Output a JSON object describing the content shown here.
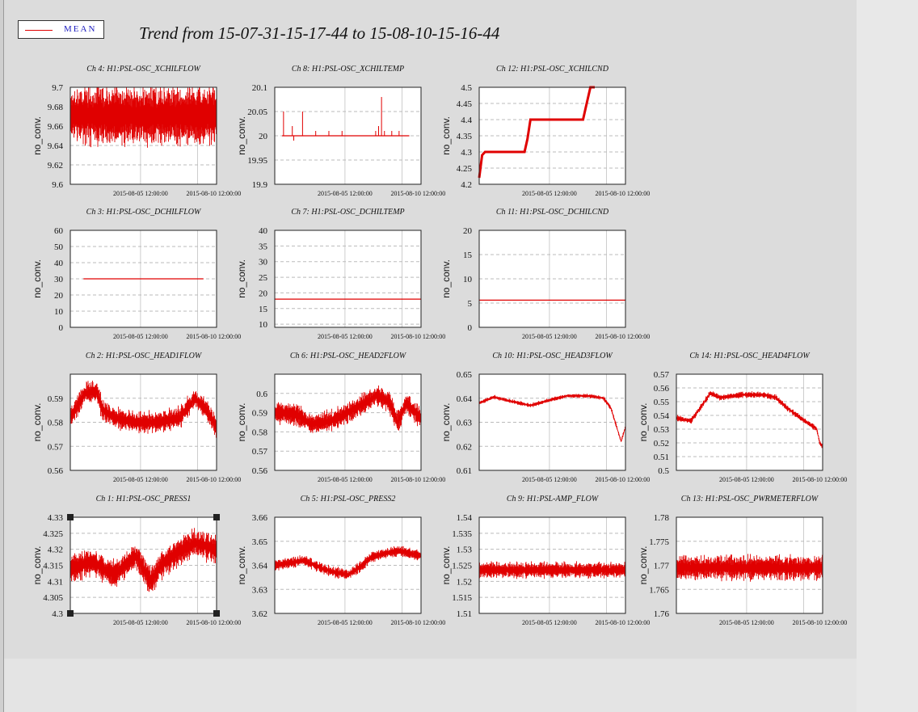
{
  "legend": {
    "label": "MEAN",
    "color": "#e00000"
  },
  "title": "Trend from 15-07-31-15-17-44 to 15-08-10-15-16-44",
  "chart_data": [
    {
      "id": "ch4",
      "type": "line",
      "title": "Ch 4: H1:PSL-OSC_XCHILFLOW",
      "ylabel": "no_conv.",
      "ylim": [
        9.6,
        9.7
      ],
      "yticks": [
        "9.6",
        "9.62",
        "9.64",
        "9.66",
        "9.68",
        "9.7"
      ],
      "xticks": [
        "2015-08-05 12:00:00",
        "2015-08-10 12:00:00"
      ],
      "pattern": "noise",
      "params": {
        "base": 9.671,
        "amp": 0.03,
        "spread": [
          0.015,
          0.035
        ]
      }
    },
    {
      "id": "ch8",
      "type": "line",
      "title": "Ch 8: H1:PSL-OSC_XCHILTEMP",
      "ylabel": "no_conv.",
      "ylim": [
        19.9,
        20.1
      ],
      "yticks": [
        "19.9",
        "19.95",
        "20",
        "20.05",
        "20.1"
      ],
      "xticks": [
        "2015-08-05 12:00:00",
        "2015-08-10 12:00:00"
      ],
      "pattern": "flat_spikes",
      "params": {
        "base": 20.0,
        "start": 0.05,
        "end": 0.92,
        "spikes": [
          [
            0.06,
            20.05
          ],
          [
            0.12,
            20.02
          ],
          [
            0.13,
            19.99
          ],
          [
            0.19,
            20.05
          ],
          [
            0.28,
            20.01
          ],
          [
            0.37,
            20.01
          ],
          [
            0.46,
            20.01
          ],
          [
            0.69,
            20.01
          ],
          [
            0.71,
            20.02
          ],
          [
            0.73,
            20.08
          ],
          [
            0.75,
            20.01
          ],
          [
            0.8,
            20.01
          ],
          [
            0.85,
            20.01
          ]
        ]
      }
    },
    {
      "id": "ch12",
      "type": "line",
      "title": "Ch 12: H1:PSL-OSC_XCHILCND",
      "ylabel": "no_conv.",
      "ylim": [
        4.2,
        4.5
      ],
      "yticks": [
        "4.2",
        "4.25",
        "4.3",
        "4.35",
        "4.4",
        "4.45",
        "4.5"
      ],
      "xticks": [
        "2015-08-05 12:00:00",
        "2015-08-10 12:00:00"
      ],
      "pattern": "steps",
      "params": {
        "points": [
          [
            0,
            4.22
          ],
          [
            0.02,
            4.29
          ],
          [
            0.04,
            4.3
          ],
          [
            0.09,
            4.3
          ],
          [
            0.31,
            4.3
          ],
          [
            0.33,
            4.34
          ],
          [
            0.35,
            4.4
          ],
          [
            0.6,
            4.4
          ],
          [
            0.71,
            4.4
          ],
          [
            0.73,
            4.44
          ],
          [
            0.76,
            4.5
          ],
          [
            0.79,
            4.5
          ]
        ]
      }
    },
    {
      "id": "ch3",
      "type": "line",
      "title": "Ch 3: H1:PSL-OSC_DCHILFLOW",
      "ylabel": "no_conv.",
      "ylim": [
        0,
        60
      ],
      "yticks": [
        "0",
        "10",
        "20",
        "30",
        "40",
        "50",
        "60"
      ],
      "xticks": [
        "2015-08-05 12:00:00",
        "2015-08-10 12:00:00"
      ],
      "pattern": "flat",
      "params": {
        "value": 30,
        "start": 0.09,
        "end": 0.91
      }
    },
    {
      "id": "ch7",
      "type": "line",
      "title": "Ch 7: H1:PSL-OSC_DCHILTEMP",
      "ylabel": "no_conv.",
      "ylim": [
        9,
        40
      ],
      "yticks": [
        "10",
        "15",
        "20",
        "25",
        "30",
        "35",
        "40"
      ],
      "xticks": [
        "2015-08-05 12:00:00",
        "2015-08-10 12:00:00"
      ],
      "pattern": "flat",
      "params": {
        "value": 18.0,
        "start": 0,
        "end": 1
      }
    },
    {
      "id": "ch11",
      "type": "line",
      "title": "Ch 11: H1:PSL-OSC_DCHILCND",
      "ylabel": "no_conv.",
      "ylim": [
        0,
        20
      ],
      "yticks": [
        "0",
        "5",
        "10",
        "15",
        "20"
      ],
      "xticks": [
        "2015-08-05 12:00:00",
        "2015-08-10 12:00:00"
      ],
      "pattern": "flat",
      "params": {
        "value": 5.6,
        "start": 0,
        "end": 1
      }
    },
    {
      "id": "ch2",
      "type": "line",
      "title": "Ch 2: H1:PSL-OSC_HEAD1FLOW",
      "ylabel": "no_conv.",
      "ylim": [
        0.56,
        0.6
      ],
      "yticks": [
        "0.56",
        "0.57",
        "0.58",
        "0.59"
      ],
      "xticks": [
        "2015-08-05 12:00:00",
        "2015-08-10 12:00:00"
      ],
      "pattern": "trend_noise",
      "params": {
        "knots": [
          [
            0,
            0.582
          ],
          [
            0.05,
            0.587
          ],
          [
            0.1,
            0.592
          ],
          [
            0.18,
            0.593
          ],
          [
            0.22,
            0.585
          ],
          [
            0.3,
            0.582
          ],
          [
            0.45,
            0.58
          ],
          [
            0.6,
            0.58
          ],
          [
            0.75,
            0.582
          ],
          [
            0.85,
            0.59
          ],
          [
            0.92,
            0.586
          ],
          [
            1,
            0.578
          ]
        ],
        "amp": 0.004
      }
    },
    {
      "id": "ch6",
      "type": "line",
      "title": "Ch 6: H1:PSL-OSC_HEAD2FLOW",
      "ylabel": "no_conv.",
      "ylim": [
        0.56,
        0.61
      ],
      "yticks": [
        "0.56",
        "0.57",
        "0.58",
        "0.59",
        "0.6"
      ],
      "xticks": [
        "2015-08-05 12:00:00",
        "2015-08-10 12:00:00"
      ],
      "pattern": "trend_noise",
      "params": {
        "knots": [
          [
            0,
            0.59
          ],
          [
            0.15,
            0.589
          ],
          [
            0.25,
            0.584
          ],
          [
            0.4,
            0.586
          ],
          [
            0.55,
            0.592
          ],
          [
            0.7,
            0.599
          ],
          [
            0.78,
            0.596
          ],
          [
            0.84,
            0.585
          ],
          [
            0.9,
            0.595
          ],
          [
            1,
            0.587
          ]
        ],
        "amp": 0.005
      }
    },
    {
      "id": "ch10",
      "type": "line",
      "title": "Ch 10: H1:PSL-OSC_HEAD3FLOW",
      "ylabel": "no_conv.",
      "ylim": [
        0.61,
        0.65
      ],
      "yticks": [
        "0.61",
        "0.62",
        "0.63",
        "0.64",
        "0.65"
      ],
      "xticks": [
        "2015-08-05 12:00:00",
        "2015-08-10 12:00:00"
      ],
      "pattern": "trend_noise",
      "params": {
        "knots": [
          [
            0,
            0.638
          ],
          [
            0.1,
            0.6405
          ],
          [
            0.2,
            0.639
          ],
          [
            0.35,
            0.637
          ],
          [
            0.5,
            0.6395
          ],
          [
            0.6,
            0.641
          ],
          [
            0.75,
            0.641
          ],
          [
            0.85,
            0.64
          ],
          [
            0.9,
            0.636
          ],
          [
            0.94,
            0.628
          ],
          [
            0.97,
            0.622
          ],
          [
            1,
            0.628
          ]
        ],
        "amp": 0.0008
      }
    },
    {
      "id": "ch14",
      "type": "line",
      "title": "Ch 14: H1:PSL-OSC_HEAD4FLOW",
      "ylabel": "no_conv.",
      "ylim": [
        0.5,
        0.57
      ],
      "yticks": [
        "0.5",
        "0.51",
        "0.52",
        "0.53",
        "0.54",
        "0.55",
        "0.56",
        "0.57"
      ],
      "xticks": [
        "2015-08-05 12:00:00",
        "2015-08-10 12:00:00"
      ],
      "pattern": "trend_noise",
      "params": {
        "knots": [
          [
            0,
            0.538
          ],
          [
            0.1,
            0.536
          ],
          [
            0.18,
            0.548
          ],
          [
            0.23,
            0.556
          ],
          [
            0.3,
            0.553
          ],
          [
            0.45,
            0.555
          ],
          [
            0.6,
            0.555
          ],
          [
            0.68,
            0.553
          ],
          [
            0.75,
            0.546
          ],
          [
            0.85,
            0.538
          ],
          [
            0.92,
            0.533
          ],
          [
            0.96,
            0.53
          ],
          [
            0.98,
            0.52
          ],
          [
            1,
            0.517
          ]
        ],
        "amp": 0.002
      }
    },
    {
      "id": "ch1",
      "type": "line",
      "title": "Ch 1: H1:PSL-OSC_PRESS1",
      "ylabel": "no_conv.",
      "ylim": [
        4.3,
        4.33
      ],
      "yticks": [
        "4.3",
        "4.305",
        "4.31",
        "4.315",
        "4.32",
        "4.325",
        "4.33"
      ],
      "xticks": [
        "2015-08-05 12:00:00",
        "2015-08-10 12:00:00"
      ],
      "pattern": "trend_noise",
      "params": {
        "knots": [
          [
            0,
            4.314
          ],
          [
            0.15,
            4.316
          ],
          [
            0.3,
            4.312
          ],
          [
            0.45,
            4.318
          ],
          [
            0.55,
            4.31
          ],
          [
            0.62,
            4.315
          ],
          [
            0.7,
            4.318
          ],
          [
            0.85,
            4.322
          ],
          [
            1,
            4.32
          ]
        ],
        "amp": 0.004
      },
      "selected": true
    },
    {
      "id": "ch5",
      "type": "line",
      "title": "Ch 5: H1:PSL-OSC_PRESS2",
      "ylabel": "no_conv.",
      "ylim": [
        3.62,
        3.66
      ],
      "yticks": [
        "3.62",
        "3.63",
        "3.64",
        "3.65",
        "3.66"
      ],
      "xticks": [
        "2015-08-05 12:00:00",
        "2015-08-10 12:00:00"
      ],
      "pattern": "trend_noise",
      "params": {
        "knots": [
          [
            0,
            3.64
          ],
          [
            0.2,
            3.642
          ],
          [
            0.35,
            3.638
          ],
          [
            0.5,
            3.636
          ],
          [
            0.6,
            3.64
          ],
          [
            0.65,
            3.643
          ],
          [
            0.75,
            3.645
          ],
          [
            0.85,
            3.646
          ],
          [
            1,
            3.644
          ]
        ],
        "amp": 0.002
      }
    },
    {
      "id": "ch9",
      "type": "line",
      "title": "Ch 9: H1:PSL-AMP_FLOW",
      "ylabel": "no_conv.",
      "ylim": [
        1.51,
        1.54
      ],
      "yticks": [
        "1.51",
        "1.515",
        "1.52",
        "1.525",
        "1.53",
        "1.535",
        "1.54"
      ],
      "xticks": [
        "2015-08-05 12:00:00",
        "2015-08-10 12:00:00"
      ],
      "pattern": "noise",
      "params": {
        "base": 1.5235,
        "amp": 0.0015,
        "spread": [
          0.001,
          0.003
        ]
      }
    },
    {
      "id": "ch13",
      "type": "line",
      "title": "Ch 13: H1:PSL-OSC_PWRMETERFLOW",
      "ylabel": "no_conv.",
      "ylim": [
        1.76,
        1.78
      ],
      "yticks": [
        "1.76",
        "1.765",
        "1.77",
        "1.775",
        "1.78"
      ],
      "xticks": [
        "2015-08-05 12:00:00",
        "2015-08-10 12:00:00"
      ],
      "pattern": "noise",
      "params": {
        "base": 1.7695,
        "amp": 0.0018,
        "spread": [
          0.001,
          0.003
        ]
      }
    }
  ]
}
